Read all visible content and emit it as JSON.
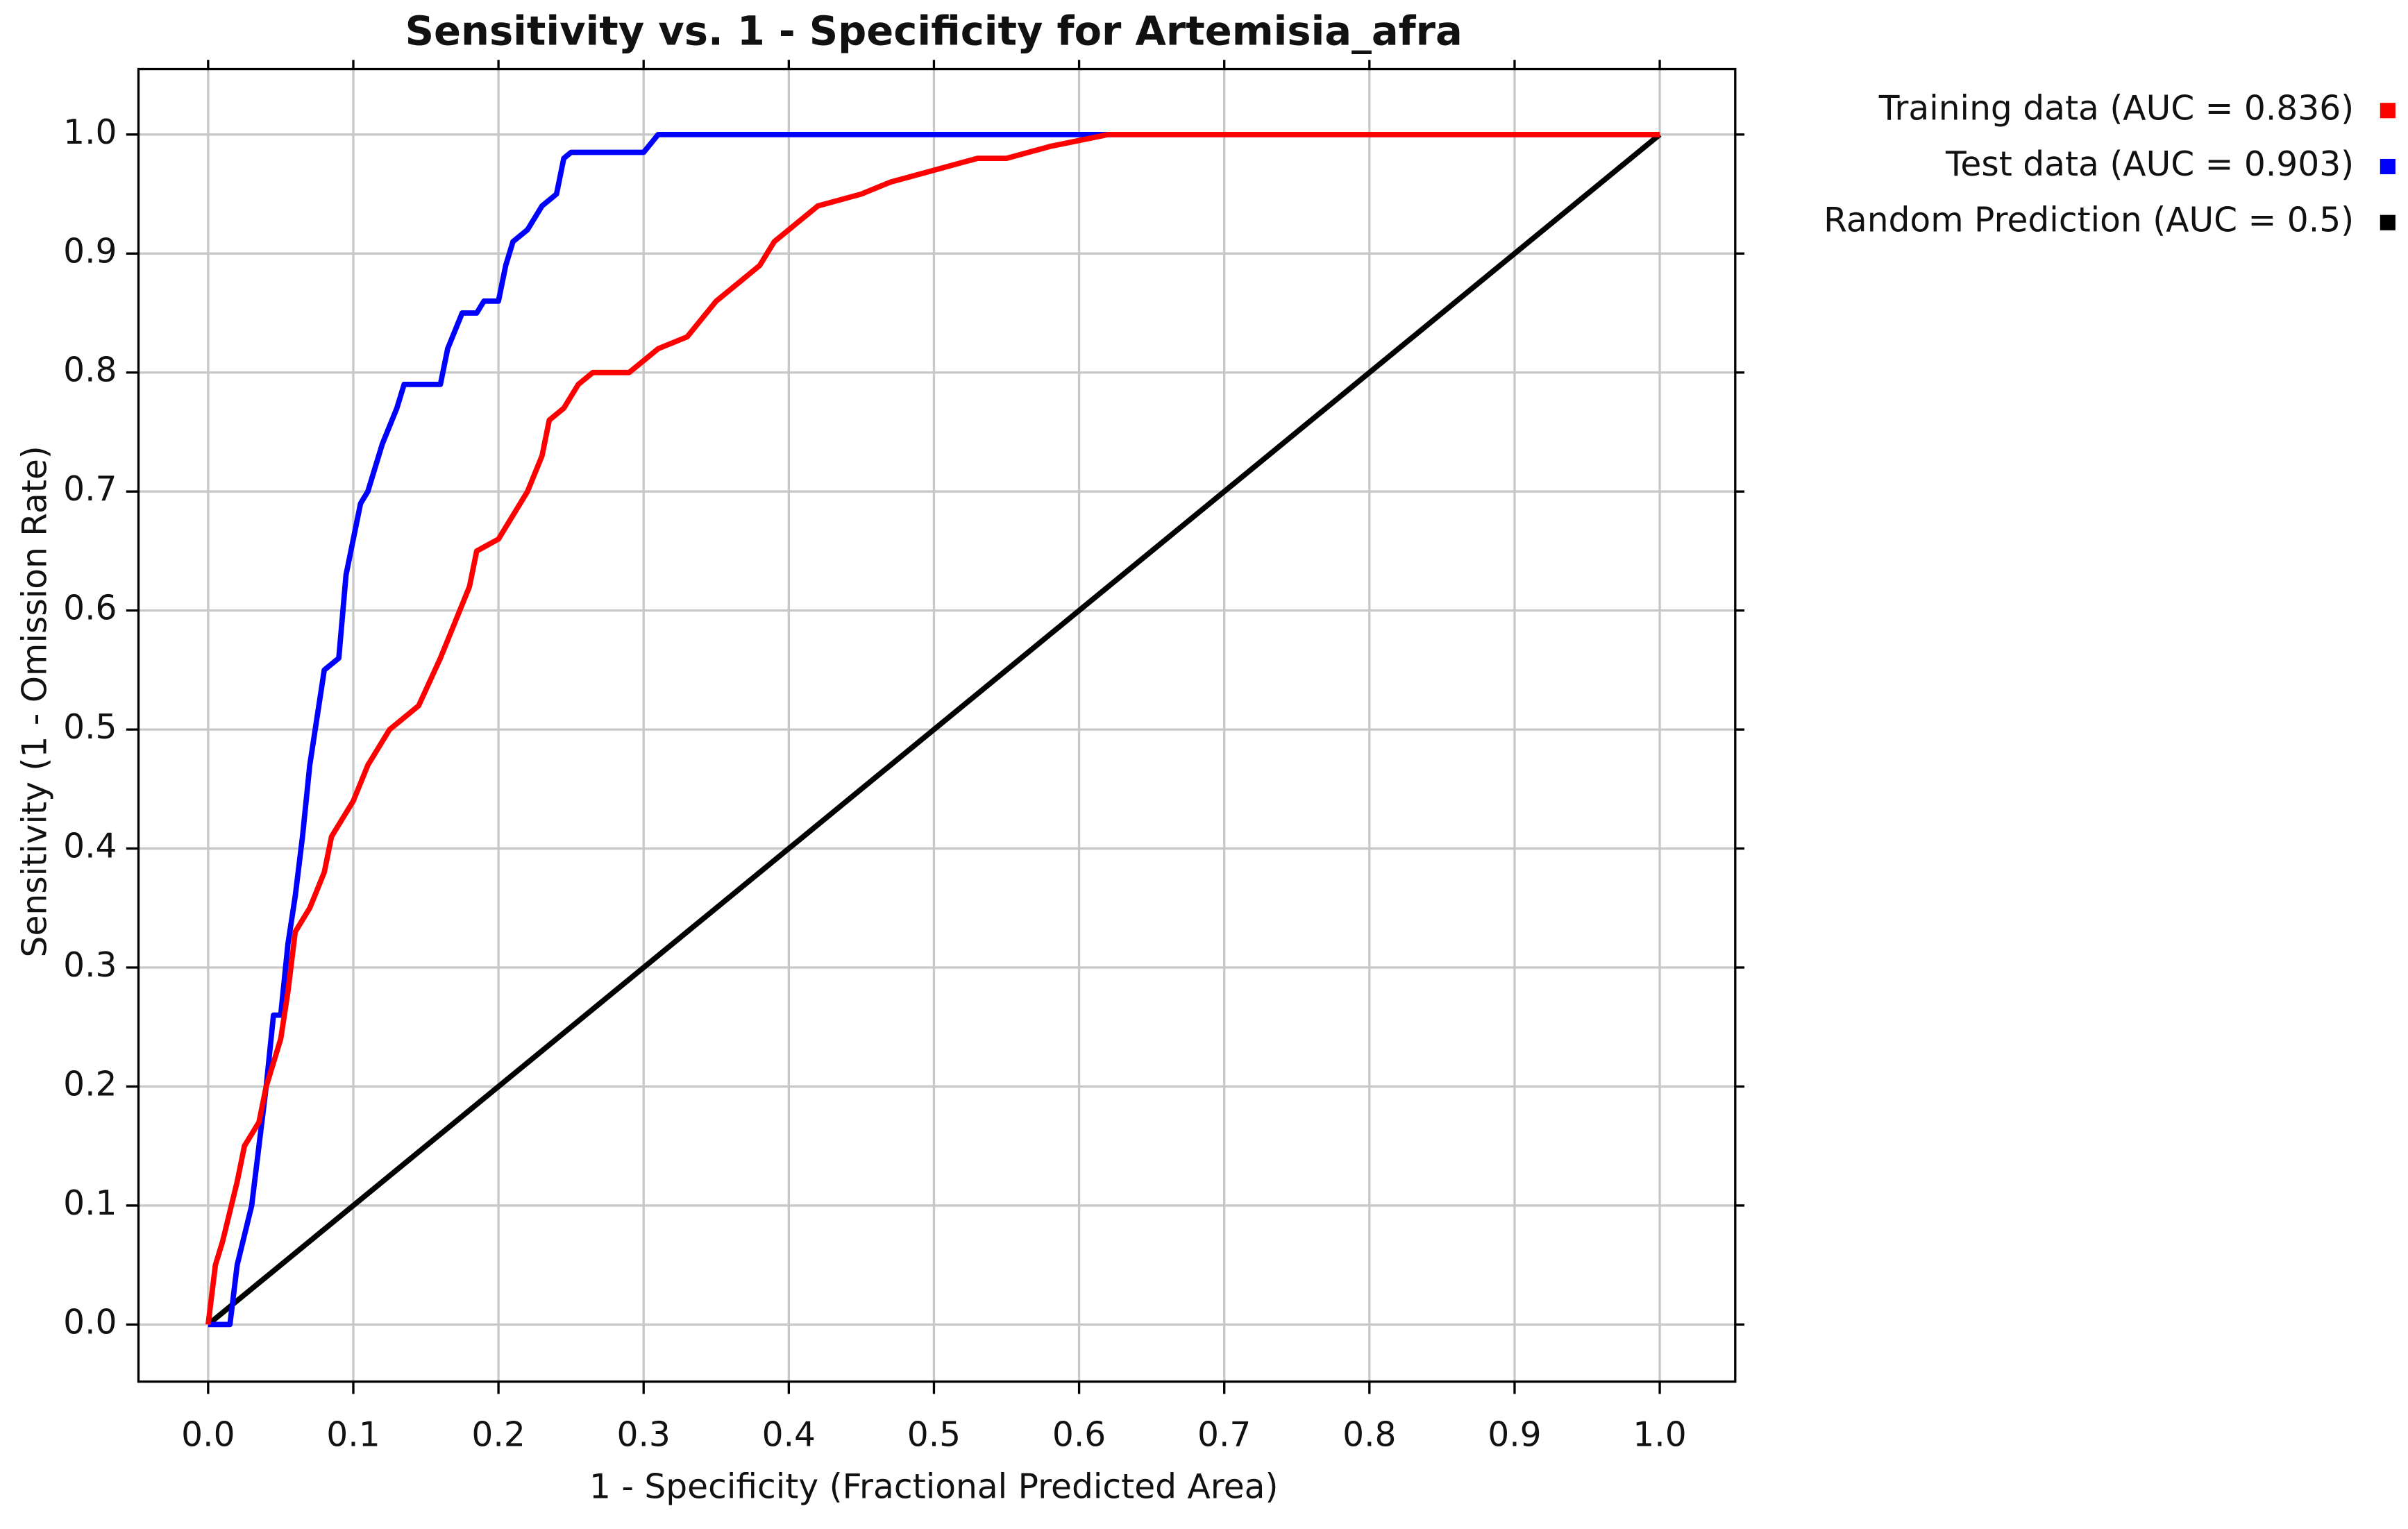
{
  "chart_data": {
    "type": "line",
    "title": "Sensitivity vs. 1 - Specificity for Artemisia_afra",
    "x_label": "1 - Specificity  (Fractional Predicted Area)",
    "y_label": "Sensitivity  (1 - Omission Rate)",
    "xlim": [
      -0.048,
      1.052
    ],
    "ylim": [
      -0.048,
      1.055
    ],
    "xticks": [
      {
        "value": 0,
        "label": "0.0"
      },
      0.1,
      0.2,
      0.3,
      0.4,
      0.5,
      0.6,
      0.7,
      0.8,
      0.9,
      {
        "value": 1,
        "label": "1.0"
      }
    ],
    "yticks": [
      {
        "value": 0,
        "label": "0.0"
      },
      0.1,
      0.2,
      0.3,
      0.4,
      0.5,
      0.6,
      0.7,
      0.8,
      0.9,
      {
        "value": 1,
        "label": "1.0"
      }
    ],
    "grid": true,
    "legend": "outside-top-right",
    "series": [
      {
        "name": "Training data (AUC = 0.836)",
        "color": "#ff0000",
        "x": [
          0,
          0.005,
          0.01,
          0.02,
          0.025,
          0.035,
          0.04,
          0.05,
          0.055,
          0.06,
          0.07,
          0.08,
          0.085,
          0.09,
          0.1,
          0.11,
          0.115,
          0.125,
          0.135,
          0.145,
          0.16,
          0.17,
          0.18,
          0.185,
          0.2,
          0.21,
          0.22,
          0.23,
          0.235,
          0.245,
          0.255,
          0.265,
          0.29,
          0.3,
          0.31,
          0.33,
          0.35,
          0.37,
          0.38,
          0.39,
          0.41,
          0.42,
          0.45,
          0.47,
          0.5,
          0.53,
          0.55,
          0.58,
          0.6,
          0.62,
          1.0
        ],
        "values": [
          0,
          0.05,
          0.07,
          0.12,
          0.15,
          0.17,
          0.2,
          0.24,
          0.28,
          0.33,
          0.35,
          0.38,
          0.41,
          0.42,
          0.44,
          0.47,
          0.48,
          0.5,
          0.51,
          0.52,
          0.56,
          0.59,
          0.62,
          0.65,
          0.66,
          0.68,
          0.7,
          0.73,
          0.76,
          0.77,
          0.79,
          0.8,
          0.8,
          0.81,
          0.82,
          0.83,
          0.86,
          0.88,
          0.89,
          0.91,
          0.93,
          0.94,
          0.95,
          0.96,
          0.97,
          0.98,
          0.98,
          0.99,
          0.995,
          1.0,
          1.0
        ]
      },
      {
        "name": "Test data (AUC = 0.903)",
        "color": "#0000ff",
        "x": [
          0,
          0.015,
          0.02,
          0.03,
          0.035,
          0.04,
          0.045,
          0.05,
          0.055,
          0.06,
          0.065,
          0.07,
          0.075,
          0.08,
          0.09,
          0.095,
          0.1,
          0.105,
          0.11,
          0.115,
          0.12,
          0.13,
          0.135,
          0.16,
          0.165,
          0.175,
          0.185,
          0.19,
          0.2,
          0.205,
          0.21,
          0.22,
          0.225,
          0.23,
          0.24,
          0.245,
          0.25,
          0.3,
          0.31,
          1.0
        ],
        "values": [
          0,
          0,
          0.05,
          0.1,
          0.15,
          0.2,
          0.26,
          0.26,
          0.32,
          0.36,
          0.41,
          0.47,
          0.51,
          0.55,
          0.56,
          0.63,
          0.66,
          0.69,
          0.7,
          0.72,
          0.74,
          0.77,
          0.79,
          0.79,
          0.82,
          0.85,
          0.85,
          0.86,
          0.86,
          0.89,
          0.91,
          0.92,
          0.93,
          0.94,
          0.95,
          0.98,
          0.985,
          0.985,
          1.0,
          1.0
        ]
      },
      {
        "name": "Random Prediction (AUC = 0.5)",
        "color": "#000000",
        "x": [
          0,
          1
        ],
        "values": [
          0,
          1
        ]
      }
    ]
  }
}
